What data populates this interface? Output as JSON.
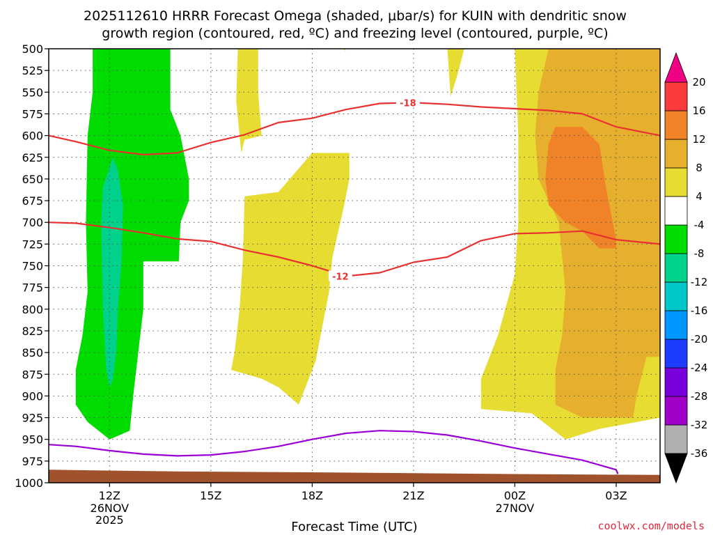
{
  "chart_data": {
    "type": "heatmap",
    "title": [
      "2025112610 HRRR Forecast Omega (shaded, μbar/s) for KUIN with dendritic snow",
      "growth region (contoured, red, ºC) and freezing level (contoured, purple, ºC)"
    ],
    "xlabel": "Forecast Time (UTC)",
    "ylabel": "",
    "x_range_hours": [
      10.2,
      28.3
    ],
    "y_axis": {
      "scale": "pressure",
      "range": [
        500,
        1000
      ],
      "ticks": [
        500,
        525,
        550,
        575,
        600,
        625,
        650,
        675,
        700,
        725,
        750,
        775,
        800,
        825,
        850,
        875,
        900,
        925,
        950,
        975,
        1000
      ]
    },
    "x_ticks": [
      {
        "hour": 12,
        "label": "12Z",
        "sub": [
          "26NOV",
          "2025"
        ]
      },
      {
        "hour": 15,
        "label": "15Z",
        "sub": []
      },
      {
        "hour": 18,
        "label": "18Z",
        "sub": []
      },
      {
        "hour": 21,
        "label": "21Z",
        "sub": []
      },
      {
        "hour": 24,
        "label": "00Z",
        "sub": [
          "27NOV"
        ]
      },
      {
        "hour": 27,
        "label": "03Z",
        "sub": []
      }
    ],
    "grid": true,
    "colorbar": {
      "placement": "right",
      "levels": [
        -36,
        -32,
        -28,
        -24,
        -20,
        -16,
        -12,
        -8,
        -4,
        4,
        8,
        12,
        16,
        20
      ],
      "level_labels": [
        "-36",
        "-32",
        "-28",
        "-24",
        "-20",
        "-16",
        "-12",
        "-8",
        "-4",
        "4",
        "8",
        "12",
        "16",
        "20"
      ],
      "colors": [
        "#b0b0b0",
        "#a000c8",
        "#7800dc",
        "#1e3cff",
        "#0096ff",
        "#00c8c8",
        "#00d28c",
        "#00dc00",
        "#ffffff",
        "#e6dc32",
        "#e6af2d",
        "#f08228",
        "#fa3c3c",
        "#f00082"
      ],
      "low_color": "#000000",
      "high_color": "#f00082"
    },
    "shaded_regions": [
      {
        "name": "",
        "value_range": [
          -8,
          -4
        ],
        "color": "#00dc00",
        "polygon": [
          [
            11.5,
            500
          ],
          [
            13.8,
            500
          ],
          [
            13.8,
            570
          ],
          [
            14.1,
            600
          ],
          [
            14.35,
            650
          ],
          [
            14.35,
            675
          ],
          [
            14.1,
            700
          ],
          [
            14.05,
            745
          ],
          [
            13.0,
            745
          ],
          [
            13.0,
            800
          ],
          [
            12.85,
            850
          ],
          [
            12.7,
            900
          ],
          [
            12.6,
            940
          ],
          [
            12.0,
            950
          ],
          [
            11.35,
            930
          ],
          [
            11.0,
            910
          ],
          [
            11.0,
            870
          ],
          [
            11.2,
            830
          ],
          [
            11.35,
            780
          ],
          [
            11.3,
            700
          ],
          [
            11.35,
            600
          ],
          [
            11.5,
            550
          ]
        ]
      },
      {
        "name": "",
        "value_range": [
          -12,
          -8
        ],
        "color": "#00d28c",
        "polygon": [
          [
            12.1,
            625
          ],
          [
            12.25,
            640
          ],
          [
            12.4,
            680
          ],
          [
            12.35,
            750
          ],
          [
            12.25,
            800
          ],
          [
            12.2,
            850
          ],
          [
            12.1,
            880
          ],
          [
            12.0,
            890
          ],
          [
            11.9,
            870
          ],
          [
            11.8,
            800
          ],
          [
            11.75,
            700
          ],
          [
            11.8,
            660
          ]
        ]
      },
      {
        "name": "",
        "value_range": [
          4,
          8
        ],
        "color": "#e6dc32",
        "polygon": [
          [
            15.8,
            500
          ],
          [
            16.4,
            500
          ],
          [
            16.4,
            550
          ],
          [
            16.5,
            600
          ],
          [
            16.0,
            605
          ],
          [
            15.9,
            620
          ],
          [
            15.75,
            560
          ]
        ]
      },
      {
        "name": "",
        "value_range": [
          4,
          8
        ],
        "color": "#e6dc32",
        "polygon": [
          [
            18.0,
            620
          ],
          [
            19.1,
            620
          ],
          [
            19.1,
            650
          ],
          [
            18.95,
            680
          ],
          [
            18.6,
            740
          ],
          [
            18.5,
            780
          ],
          [
            18.3,
            820
          ],
          [
            18.1,
            860
          ],
          [
            17.6,
            910
          ],
          [
            17.0,
            890
          ],
          [
            16.5,
            880
          ],
          [
            15.6,
            870
          ],
          [
            15.7,
            850
          ],
          [
            15.85,
            800
          ],
          [
            15.95,
            740
          ],
          [
            16.0,
            670
          ],
          [
            17.0,
            665
          ]
        ]
      },
      {
        "name": "",
        "value_range": [
          4,
          8
        ],
        "color": "#e6dc32",
        "polygon": [
          [
            18.9,
            500
          ],
          [
            19.0,
            503
          ],
          [
            18.95,
            500
          ]
        ]
      },
      {
        "name": "",
        "value_range": [
          4,
          8
        ],
        "color": "#e6dc32",
        "polygon": [
          [
            22.0,
            500
          ],
          [
            22.5,
            500
          ],
          [
            22.3,
            530
          ],
          [
            22.1,
            555
          ]
        ]
      },
      {
        "name": "",
        "value_range": [
          4,
          8
        ],
        "color": "#e6dc32",
        "polygon": [
          [
            24.0,
            500
          ],
          [
            28.3,
            500
          ],
          [
            28.3,
            925
          ],
          [
            26.5,
            938
          ],
          [
            25.5,
            950
          ],
          [
            24.5,
            920
          ],
          [
            23.0,
            915
          ],
          [
            23.0,
            880
          ],
          [
            23.5,
            830
          ],
          [
            24.0,
            760
          ],
          [
            24.1,
            700
          ],
          [
            24.1,
            600
          ]
        ]
      },
      {
        "name": "",
        "value_range": [
          8,
          12
        ],
        "color": "#e6af2d",
        "polygon": [
          [
            25.0,
            500
          ],
          [
            28.3,
            500
          ],
          [
            28.3,
            855
          ],
          [
            27.9,
            855
          ],
          [
            27.6,
            900
          ],
          [
            27.5,
            925
          ],
          [
            26.0,
            925
          ],
          [
            25.2,
            910
          ],
          [
            25.2,
            870
          ],
          [
            25.4,
            830
          ],
          [
            25.5,
            780
          ],
          [
            25.3,
            700
          ],
          [
            24.7,
            650
          ],
          [
            24.6,
            600
          ],
          [
            24.7,
            550
          ]
        ]
      },
      {
        "name": "",
        "value_range": [
          12,
          16
        ],
        "color": "#f08228",
        "polygon": [
          [
            25.2,
            590
          ],
          [
            26.0,
            590
          ],
          [
            26.5,
            610
          ],
          [
            26.7,
            660
          ],
          [
            26.9,
            700
          ],
          [
            27.0,
            720
          ],
          [
            27.0,
            730
          ],
          [
            26.5,
            730
          ],
          [
            26.0,
            710
          ],
          [
            25.5,
            700
          ],
          [
            25.0,
            680
          ],
          [
            24.9,
            650
          ],
          [
            25.0,
            610
          ]
        ]
      }
    ],
    "surface_region": {
      "name": "",
      "color": "#a0522d",
      "top_boundary": [
        [
          10.2,
          985
        ],
        [
          14.0,
          987
        ],
        [
          18.0,
          988
        ],
        [
          21.0,
          989
        ],
        [
          24.0,
          990
        ],
        [
          28.3,
          991
        ]
      ]
    },
    "series": [
      {
        "name": "",
        "color": "#e83030",
        "label": "-18",
        "points": [
          [
            10.2,
            600
          ],
          [
            11.0,
            607
          ],
          [
            12.0,
            617
          ],
          [
            13.0,
            622
          ],
          [
            14.0,
            620
          ],
          [
            15.0,
            608
          ],
          [
            16.0,
            599
          ],
          [
            17.0,
            585
          ],
          [
            18.0,
            580
          ],
          [
            19.0,
            570
          ],
          [
            20.0,
            563
          ],
          [
            21.0,
            562
          ],
          [
            22.0,
            564
          ],
          [
            23.0,
            567
          ],
          [
            24.0,
            569
          ],
          [
            25.0,
            571
          ],
          [
            26.0,
            575
          ],
          [
            27.0,
            590
          ],
          [
            28.3,
            600
          ]
        ]
      },
      {
        "name": "",
        "color": "#e83030",
        "label": "-12",
        "points": [
          [
            10.2,
            700
          ],
          [
            11.0,
            701
          ],
          [
            12.0,
            706
          ],
          [
            13.0,
            712
          ],
          [
            14.0,
            719
          ],
          [
            15.0,
            722
          ],
          [
            16.0,
            732
          ],
          [
            17.0,
            740
          ],
          [
            18.0,
            750
          ],
          [
            19.0,
            762
          ],
          [
            20.0,
            758
          ],
          [
            21.0,
            746
          ],
          [
            22.0,
            740
          ],
          [
            23.0,
            721
          ],
          [
            24.0,
            713
          ],
          [
            25.0,
            712
          ],
          [
            26.0,
            710
          ],
          [
            27.0,
            720
          ],
          [
            28.3,
            725
          ]
        ]
      },
      {
        "name": "",
        "color": "#9a00d6",
        "label": "",
        "points": [
          [
            10.2,
            956
          ],
          [
            11.0,
            958
          ],
          [
            12.0,
            963
          ],
          [
            13.0,
            967
          ],
          [
            14.0,
            969
          ],
          [
            15.0,
            968
          ],
          [
            16.0,
            964
          ],
          [
            17.0,
            958
          ],
          [
            18.0,
            950
          ],
          [
            19.0,
            943
          ],
          [
            20.0,
            940
          ],
          [
            21.0,
            941
          ],
          [
            22.0,
            945
          ],
          [
            23.0,
            952
          ],
          [
            24.0,
            960
          ],
          [
            25.0,
            967
          ],
          [
            26.0,
            974
          ],
          [
            27.0,
            985
          ],
          [
            27.05,
            990
          ]
        ]
      }
    ]
  },
  "footer": {
    "credit": "coolwx.com/models"
  }
}
